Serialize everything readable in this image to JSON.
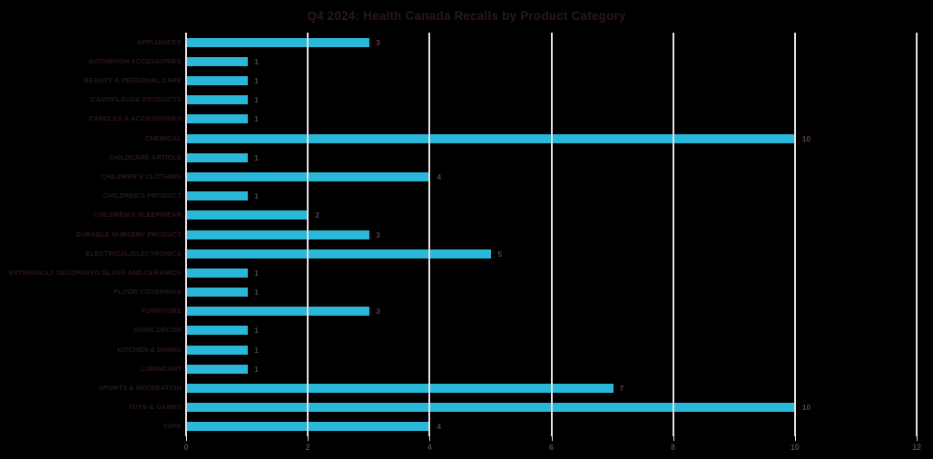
{
  "title": "Q4 2024: Health Canada Recalls by Product Category",
  "chart_data": {
    "type": "bar",
    "orientation": "horizontal",
    "title": "Q4 2024: Health Canada Recalls by Product Category",
    "categories": [
      "APPLIANCES",
      "BATHROOM ACCESSORIES",
      "BEAUTY & PERSONAL CARE",
      "CAMOFLAUGE PRODUCTS",
      "CANDLES & ACCESSORIES",
      "CHEMICAL",
      "CHILDCARE ARTICLE",
      "CHILDREN'S CLOTHING",
      "CHILDREN'S PRODUCT",
      "CHILDREN'S SLEEPWEAR",
      "DURABLE NURSERY PRODUCT",
      "ELECTRICAL/ELECTRONICS",
      "EXTERNALLY DECORATED GLASS AND CERAMICS",
      "FLOOR COVERINGS",
      "FURNITURE",
      "HOME DÉCOR",
      "KITCHEN & DINING",
      "LUBRICANT",
      "SPORTS & RECREATION",
      "TOYS & GAMES",
      "VAPE"
    ],
    "values": [
      3,
      1,
      1,
      1,
      1,
      10,
      1,
      4,
      1,
      2,
      3,
      5,
      1,
      1,
      3,
      1,
      1,
      1,
      7,
      10,
      4
    ],
    "data_labels": [
      "3",
      "1",
      "1",
      "1",
      "1",
      "10",
      "1",
      "4",
      "1",
      "2",
      "3",
      "5",
      "1",
      "1",
      "3",
      "1",
      "1",
      "1",
      "7",
      "10",
      "4"
    ],
    "x_tick_labels": [
      "0",
      "2",
      "4",
      "6",
      "8",
      "10",
      "12"
    ],
    "x_ticks": [
      0,
      2,
      4,
      6,
      8,
      10,
      12
    ],
    "xlim": [
      0,
      12
    ],
    "xlabel": "",
    "ylabel": "",
    "grid": "vertical",
    "legend": "none"
  },
  "colors": {
    "background": "#000000",
    "bar": "#2ab8d9",
    "grid": "#e8dee4",
    "title": "#2a161e",
    "category_label": "#2b161f",
    "value_label": "#5d3b4b",
    "tick_label": "#5d3b4b"
  }
}
